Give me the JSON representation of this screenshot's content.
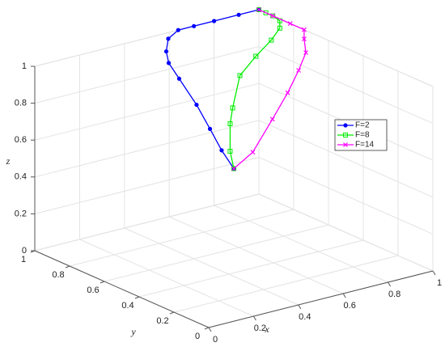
{
  "chart_data": {
    "type": "line3d",
    "xlabel": "x",
    "ylabel": "y",
    "zlabel": "z",
    "xlim": [
      0,
      1
    ],
    "ylim": [
      0,
      1
    ],
    "zlim": [
      0,
      1
    ],
    "xticks": [
      0,
      0.2,
      0.4,
      0.6,
      0.8,
      1
    ],
    "yticks": [
      0,
      0.2,
      0.4,
      0.6,
      0.8,
      1
    ],
    "zticks": [
      0,
      0.2,
      0.4,
      0.6,
      0.8,
      1
    ],
    "grid": true,
    "legend": "right",
    "series": [
      {
        "name": "F=2",
        "color": "#0000ff",
        "marker": "dot",
        "x": [
          0.5,
          0.5,
          0.51,
          0.52,
          0.52,
          0.52,
          0.54,
          0.58,
          0.64,
          0.71,
          0.8,
          0.91,
          1
        ],
        "y": [
          0.5,
          0.57,
          0.65,
          0.74,
          0.84,
          0.9,
          0.94,
          0.98,
          1,
          1,
          1,
          1,
          1
        ],
        "z": [
          0.5,
          0.57,
          0.65,
          0.74,
          0.84,
          0.9,
          0.94,
          0.98,
          1,
          1,
          1,
          1,
          1
        ]
      },
      {
        "name": "F=8",
        "color": "#00ee00",
        "marker": "square",
        "x": [
          0.5,
          0.53,
          0.6,
          0.65,
          0.76,
          0.87,
          0.97,
          1,
          1,
          1,
          1,
          1
        ],
        "y": [
          0.5,
          0.56,
          0.65,
          0.7,
          0.8,
          0.85,
          0.89,
          0.88,
          0.88,
          0.92,
          0.96,
          1
        ],
        "z": [
          0.5,
          0.56,
          0.65,
          0.7,
          0.8,
          0.85,
          0.89,
          0.95,
          0.99,
          1,
          1,
          1
        ]
      },
      {
        "name": "F=14",
        "color": "#ff00ff",
        "marker": "cross",
        "x": [
          0.5,
          0.6,
          0.75,
          0.88,
          0.96,
          1,
          1,
          1,
          1,
          1,
          1
        ],
        "y": [
          0.5,
          0.52,
          0.6,
          0.68,
          0.72,
          0.73,
          0.74,
          0.74,
          0.82,
          0.92,
          1
        ],
        "z": [
          0.5,
          0.55,
          0.65,
          0.72,
          0.8,
          0.88,
          0.95,
          1,
          1,
          1,
          1
        ]
      }
    ]
  }
}
